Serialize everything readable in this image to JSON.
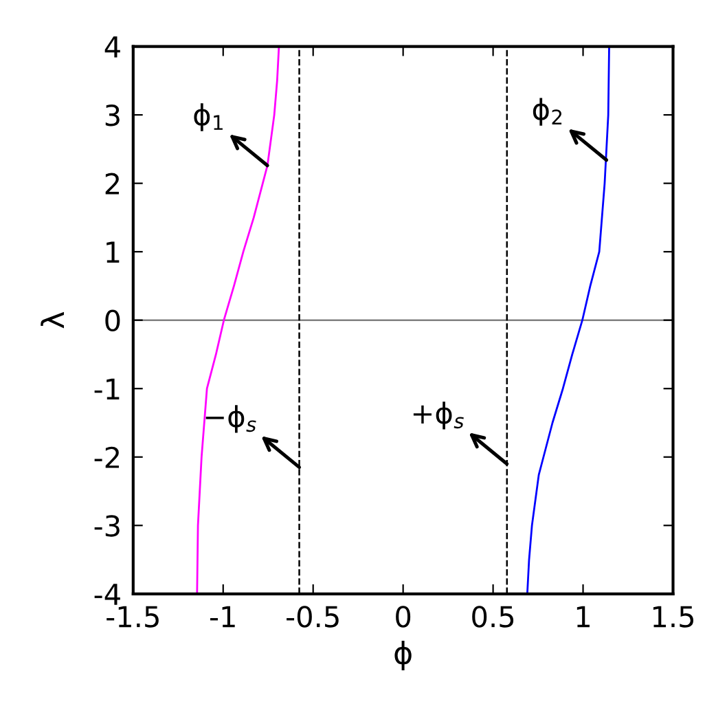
{
  "chart_data": {
    "type": "line",
    "xlabel": "ϕ",
    "ylabel": "λ",
    "xlim": [
      -1.5,
      1.5
    ],
    "ylim": [
      -4,
      4
    ],
    "xticks": [
      -1.5,
      -1,
      -0.5,
      0,
      0.5,
      1,
      1.5
    ],
    "yticks": [
      -4,
      -3,
      -2,
      -1,
      0,
      1,
      2,
      3,
      4
    ],
    "grid": false,
    "legend": false,
    "series": [
      {
        "color": "#ff00ff",
        "x": [
          -1.145,
          -1.14,
          -1.12,
          -1.09,
          -1.04,
          -0.996,
          -0.94,
          -0.888,
          -0.83,
          -0.78,
          -0.754,
          -0.716,
          -0.7,
          -0.69
        ],
        "values": [
          -4,
          -3,
          -2,
          -1,
          -0.5,
          0,
          0.5,
          1,
          1.5,
          2,
          2.26,
          3,
          3.5,
          4
        ]
      },
      {
        "color": "#0000ff",
        "x": [
          0.69,
          0.7,
          0.716,
          0.754,
          0.78,
          0.83,
          0.888,
          0.94,
          0.996,
          1.04,
          1.09,
          1.12,
          1.14,
          1.145
        ],
        "values": [
          -4,
          -3.5,
          -3,
          -2.26,
          -2,
          -1.5,
          -1,
          -0.5,
          0,
          0.5,
          1,
          2,
          3,
          4
        ]
      }
    ],
    "ref_lines": [
      {
        "axis": "y",
        "value": 0,
        "color": "#808080",
        "line_style": "solid"
      },
      {
        "axis": "x",
        "value": -0.577,
        "color": "#000000",
        "line_style": "dashed"
      },
      {
        "axis": "x",
        "value": 0.577,
        "color": "#000000",
        "line_style": "dashed"
      }
    ],
    "annotations": [
      {
        "text": "ϕ$_{1}$",
        "x": -0.754,
        "y": 2.26
      },
      {
        "text": "ϕ$_{2}$",
        "x": 1.13,
        "y": 2.34
      },
      {
        "text": "−ϕ$_{s}$",
        "x": -0.577,
        "y": -2.15
      },
      {
        "text": "+ϕ$_{s}$",
        "x": 0.577,
        "y": -2.1
      }
    ]
  }
}
